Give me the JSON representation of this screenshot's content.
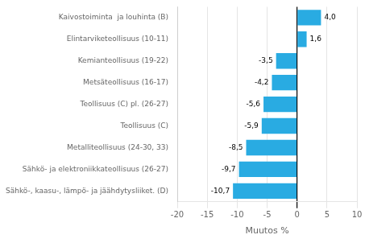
{
  "chart_data": {
    "type": "bar",
    "orientation": "horizontal",
    "categories": [
      "Sähkö-, kaasu-, lämpö- ja jäähdytysliiket. (D)",
      "Sähkö- ja elektroniikkateollisuus (26-27)",
      "Metalliteollisuus (24-30, 33)",
      "Teollisuus (C)",
      "Teollisuus (C) pl. (26-27)",
      "Metsäteollisuus (16-17)",
      "Kemianteollisuus (19-22)",
      "Elintarviketeollisuus (10-11)",
      "Kaivostoiminta  ja louhinta (B)"
    ],
    "values": [
      -10.7,
      -9.7,
      -8.5,
      -5.9,
      -5.6,
      -4.2,
      -3.5,
      1.6,
      4.0
    ],
    "value_labels": [
      "-10,7",
      "-9,7",
      "-8,5",
      "-5,9",
      "-5,6",
      "-4,2",
      "-3,5",
      "1,6",
      "4,0"
    ],
    "data_labels": true,
    "color": "#29ABE2",
    "xlabel": "Muutos %",
    "xlim": [
      -20,
      10
    ],
    "xticks": [
      -20,
      -15,
      -10,
      -5,
      0,
      5,
      10
    ],
    "grid": true
  }
}
